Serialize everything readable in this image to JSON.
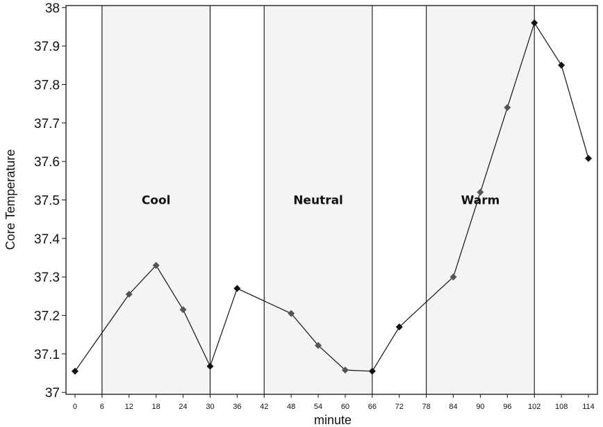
{
  "chart_data": {
    "type": "line",
    "title": "",
    "xlabel": "minute",
    "ylabel": "Core Temperature",
    "xlim": [
      -2,
      116
    ],
    "ylim": [
      36.995,
      38.005
    ],
    "x_ticks": [
      0,
      6,
      12,
      18,
      24,
      30,
      36,
      42,
      48,
      54,
      60,
      66,
      72,
      78,
      84,
      90,
      96,
      102,
      108,
      114
    ],
    "y_ticks": [
      37,
      37.1,
      37.2,
      37.3,
      37.4,
      37.5,
      37.6,
      37.7,
      37.8,
      37.9,
      38
    ],
    "y_tick_labels": [
      "37",
      "37.1",
      "37.2",
      "37.3",
      "37.4",
      "37.5",
      "37.6",
      "37.7",
      "37.8",
      "37.9",
      "38"
    ],
    "grid": false,
    "legend": "none",
    "vertical_lines": [
      6,
      30,
      42,
      66,
      78,
      102
    ],
    "shaded_bands": [
      {
        "label": "Cool",
        "from": 6,
        "to": 30,
        "label_y": 37.5
      },
      {
        "label": "Neutral",
        "from": 42,
        "to": 66,
        "label_y": 37.5
      },
      {
        "label": "Warm",
        "from": 78,
        "to": 102,
        "label_y": 37.5
      }
    ],
    "series": [
      {
        "x": [
          0,
          12,
          18,
          24,
          30,
          36,
          48,
          54,
          60,
          66,
          72,
          84,
          90,
          96,
          102,
          108,
          114
        ],
        "values": [
          37.055,
          37.255,
          37.33,
          37.215,
          37.068,
          37.27,
          37.205,
          37.122,
          37.058,
          37.055,
          37.17,
          37.3,
          37.52,
          37.74,
          37.96,
          37.85,
          37.608
        ]
      }
    ],
    "colors": {
      "band_fill": "#f4f4f4",
      "marker_dark": "#111111",
      "marker_gray": "#555555",
      "line": "#111111"
    }
  }
}
